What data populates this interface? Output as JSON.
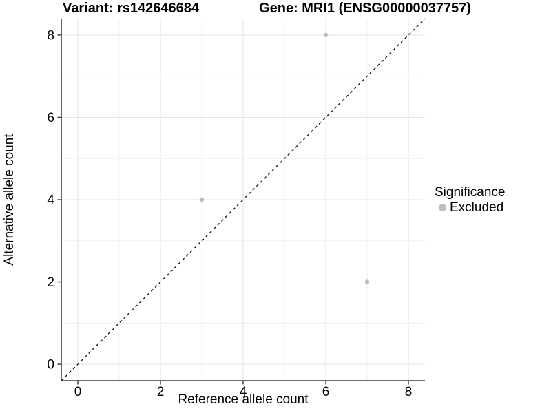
{
  "chart_data": {
    "type": "scatter",
    "title_left": "Variant: rs142646684",
    "title_right": "Gene: MRI1 (ENSG00000037757)",
    "xlabel": "Reference allele count",
    "ylabel": "Alternative allele count",
    "xlim": [
      -0.4,
      8.4
    ],
    "ylim": [
      -0.4,
      8.4
    ],
    "x_ticks": [
      0,
      2,
      4,
      6,
      8
    ],
    "y_ticks": [
      0,
      2,
      4,
      6,
      8
    ],
    "x_minor_ticks": [
      1,
      3,
      5,
      7
    ],
    "y_minor_ticks": [
      1,
      3,
      5,
      7
    ],
    "grid": true,
    "identity_line": {
      "style": "dashed",
      "from": [
        -0.4,
        -0.4
      ],
      "to": [
        8.4,
        8.4
      ],
      "color": "#111111"
    },
    "series": [
      {
        "name": "Excluded",
        "color": "#bdbdbd",
        "points": [
          [
            6,
            8
          ],
          [
            3,
            4
          ],
          [
            7,
            2
          ]
        ]
      }
    ],
    "legend": {
      "title": "Significance",
      "position": "right",
      "items": [
        {
          "label": "Excluded",
          "color": "#bdbdbd"
        }
      ]
    },
    "colors": {
      "background": "#ffffff",
      "grid_major": "#e3e3e3",
      "grid_minor": "#f0f0f0",
      "axis_line": "#3b3b3b",
      "tick_mark": "#333333",
      "tick_label": "#000000",
      "point": "#bdbdbd"
    }
  }
}
